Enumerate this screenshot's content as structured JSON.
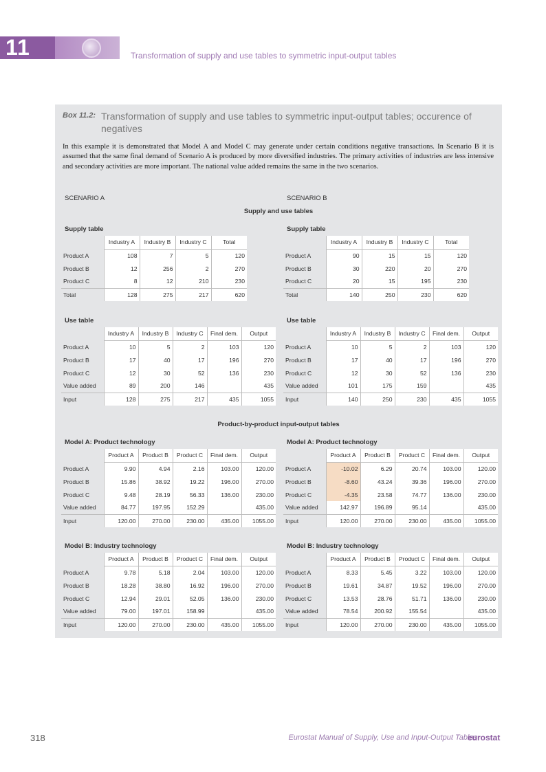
{
  "header": {
    "chapter_number": "11",
    "running_title": "Transformation of supply and use tables to symmetric input-output tables"
  },
  "box": {
    "label": "Box 11.2:",
    "title": "Transformation of supply and use tables to symmetric input-output tables; occurence of negatives",
    "text": "In this example it is demonstrated that Model A and Model C may generate under certain conditions negative transactions. In Scenario B it is assumed that the same final demand of Scenario A is produced by more diversified industries. The primary activities of industries are less intensive and secondary activities are more important. The national value added remains the same in the two scenarios.",
    "scenario_a": "SCENARIO A",
    "scenario_b": "SCENARIO B",
    "section_supply_use": "Supply and use tables",
    "section_pxp": "Product-by-product input-output tables"
  },
  "tables": {
    "supply_a": {
      "title": "Supply table",
      "columns": [
        "Industry A",
        "Industry B",
        "Industry C",
        "Total"
      ],
      "rows": [
        {
          "label": "Product A",
          "cells": [
            "108",
            "7",
            "5",
            "120"
          ]
        },
        {
          "label": "Product B",
          "cells": [
            "12",
            "256",
            "2",
            "270"
          ]
        },
        {
          "label": "Product C",
          "cells": [
            "8",
            "12",
            "210",
            "230"
          ]
        },
        {
          "label": "Total",
          "cells": [
            "128",
            "275",
            "217",
            "620"
          ]
        }
      ]
    },
    "supply_b": {
      "title": "Supply table",
      "columns": [
        "Industry A",
        "Industry B",
        "Industry C",
        "Total"
      ],
      "rows": [
        {
          "label": "Product A",
          "cells": [
            "90",
            "15",
            "15",
            "120"
          ]
        },
        {
          "label": "Product B",
          "cells": [
            "30",
            "220",
            "20",
            "270"
          ]
        },
        {
          "label": "Product C",
          "cells": [
            "20",
            "15",
            "195",
            "230"
          ]
        },
        {
          "label": "Total",
          "cells": [
            "140",
            "250",
            "230",
            "620"
          ]
        }
      ]
    },
    "use_a": {
      "title": "Use table",
      "columns": [
        "Industry A",
        "Industry B",
        "Industry C",
        "Final dem.",
        "Output"
      ],
      "rows": [
        {
          "label": "Product A",
          "cells": [
            "10",
            "5",
            "2",
            "103",
            "120"
          ]
        },
        {
          "label": "Product B",
          "cells": [
            "17",
            "40",
            "17",
            "196",
            "270"
          ]
        },
        {
          "label": "Product C",
          "cells": [
            "12",
            "30",
            "52",
            "136",
            "230"
          ]
        },
        {
          "label": "Value added",
          "cells": [
            "89",
            "200",
            "146",
            "",
            "435"
          ]
        },
        {
          "label": "Input",
          "cells": [
            "128",
            "275",
            "217",
            "435",
            "1055"
          ]
        }
      ]
    },
    "use_b": {
      "title": "Use table",
      "columns": [
        "Industry A",
        "Industry B",
        "Industry C",
        "Final dem.",
        "Output"
      ],
      "rows": [
        {
          "label": "Product A",
          "cells": [
            "10",
            "5",
            "2",
            "103",
            "120"
          ]
        },
        {
          "label": "Product B",
          "cells": [
            "17",
            "40",
            "17",
            "196",
            "270"
          ]
        },
        {
          "label": "Product C",
          "cells": [
            "12",
            "30",
            "52",
            "136",
            "230"
          ]
        },
        {
          "label": "Value added",
          "cells": [
            "101",
            "175",
            "159",
            "",
            "435"
          ]
        },
        {
          "label": "Input",
          "cells": [
            "140",
            "250",
            "230",
            "435",
            "1055"
          ]
        }
      ]
    },
    "model_a_a": {
      "title": "Model A: Product technology",
      "columns": [
        "Product A",
        "Product B",
        "Product C",
        "Final dem.",
        "Output"
      ],
      "rows": [
        {
          "label": "Product A",
          "cells": [
            "9.90",
            "4.94",
            "2.16",
            "103.00",
            "120.00"
          ]
        },
        {
          "label": "Product B",
          "cells": [
            "15.86",
            "38.92",
            "19.22",
            "196.00",
            "270.00"
          ]
        },
        {
          "label": "Product C",
          "cells": [
            "9.48",
            "28.19",
            "56.33",
            "136.00",
            "230.00"
          ]
        },
        {
          "label": "Value added",
          "cells": [
            "84.77",
            "197.95",
            "152.29",
            "",
            "435.00"
          ]
        },
        {
          "label": "Input",
          "cells": [
            "120.00",
            "270.00",
            "230.00",
            "435.00",
            "1055.00"
          ]
        }
      ]
    },
    "model_a_b": {
      "title": "Model A: Product technology",
      "columns": [
        "Product A",
        "Product B",
        "Product C",
        "Final dem.",
        "Output"
      ],
      "rows": [
        {
          "label": "Product A",
          "cells": [
            "-10.02",
            "6.29",
            "20.74",
            "103.00",
            "120.00"
          ]
        },
        {
          "label": "Product B",
          "cells": [
            "-8.60",
            "43.24",
            "39.36",
            "196.00",
            "270.00"
          ]
        },
        {
          "label": "Product C",
          "cells": [
            "-4.35",
            "23.58",
            "74.77",
            "136.00",
            "230.00"
          ]
        },
        {
          "label": "Value added",
          "cells": [
            "142.97",
            "196.89",
            "95.14",
            "",
            "435.00"
          ]
        },
        {
          "label": "Input",
          "cells": [
            "120.00",
            "270.00",
            "230.00",
            "435.00",
            "1055.00"
          ]
        }
      ]
    },
    "model_b_a": {
      "title": "Model B: Industry technology",
      "columns": [
        "Product A",
        "Product B",
        "Product C",
        "Final dem.",
        "Output"
      ],
      "rows": [
        {
          "label": "Product A",
          "cells": [
            "9.78",
            "5.18",
            "2.04",
            "103.00",
            "120.00"
          ]
        },
        {
          "label": "Product B",
          "cells": [
            "18.28",
            "38.80",
            "16.92",
            "196.00",
            "270.00"
          ]
        },
        {
          "label": "Product C",
          "cells": [
            "12.94",
            "29.01",
            "52.05",
            "136.00",
            "230.00"
          ]
        },
        {
          "label": "Value added",
          "cells": [
            "79.00",
            "197.01",
            "158.99",
            "",
            "435.00"
          ]
        },
        {
          "label": "Input",
          "cells": [
            "120.00",
            "270.00",
            "230.00",
            "435.00",
            "1055.00"
          ]
        }
      ]
    },
    "model_b_b": {
      "title": "Model B: Industry technology",
      "columns": [
        "Product A",
        "Product B",
        "Product C",
        "Final dem.",
        "Output"
      ],
      "rows": [
        {
          "label": "Product A",
          "cells": [
            "8.33",
            "5.45",
            "3.22",
            "103.00",
            "120.00"
          ]
        },
        {
          "label": "Product B",
          "cells": [
            "19.61",
            "34.87",
            "19.52",
            "196.00",
            "270.00"
          ]
        },
        {
          "label": "Product C",
          "cells": [
            "13.53",
            "28.76",
            "51.71",
            "136.00",
            "230.00"
          ]
        },
        {
          "label": "Value added",
          "cells": [
            "78.54",
            "200.92",
            "155.54",
            "",
            "435.00"
          ]
        },
        {
          "label": "Input",
          "cells": [
            "120.00",
            "270.00",
            "230.00",
            "435.00",
            "1055.00"
          ]
        }
      ]
    }
  },
  "footer": {
    "page_number": "318",
    "publication": "Eurostat Manual of Supply, Use and Input-Output Tables",
    "brand": "eurostat"
  }
}
